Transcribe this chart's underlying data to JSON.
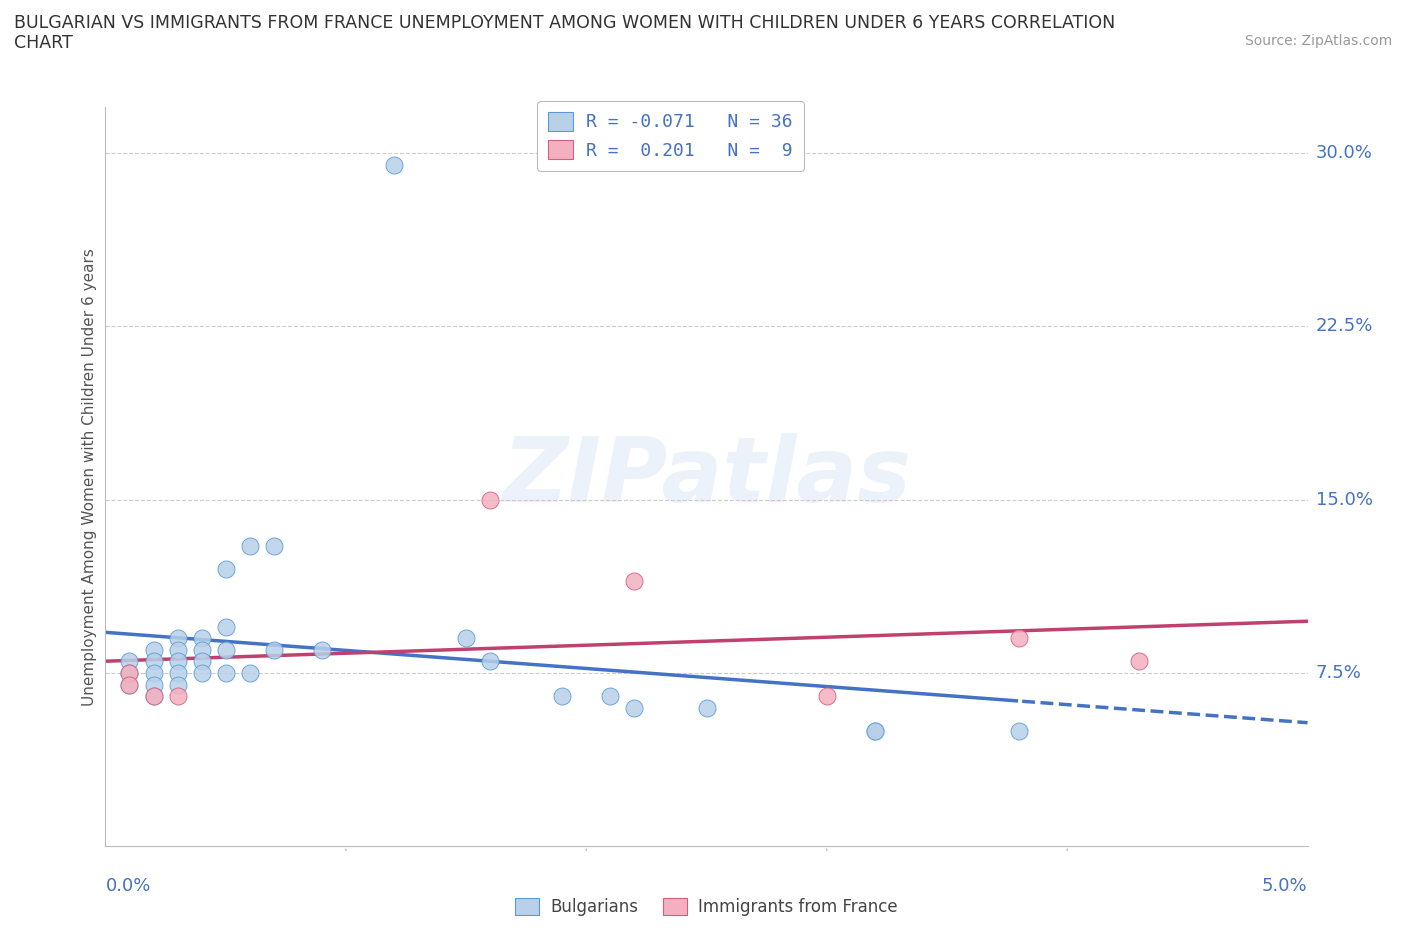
{
  "title_line1": "BULGARIAN VS IMMIGRANTS FROM FRANCE UNEMPLOYMENT AMONG WOMEN WITH CHILDREN UNDER 6 YEARS CORRELATION",
  "title_line2": "CHART",
  "source": "Source: ZipAtlas.com",
  "ylabel": "Unemployment Among Women with Children Under 6 years",
  "watermark": "ZIPatlas",
  "legend_bulgarian": "Bulgarians",
  "legend_france": "Immigrants from France",
  "R_bulgarian": -0.071,
  "N_bulgarian": 36,
  "R_france": 0.201,
  "N_france": 9,
  "color_bulgarian_fill": "#b8d0e8",
  "color_bulgarian_edge": "#5b9bd5",
  "color_france_fill": "#f4b0c0",
  "color_france_edge": "#d06080",
  "color_text_blue": "#4472c4",
  "color_trend_blue": "#4472c4",
  "color_trend_pink": "#c04070",
  "ytick_labels": [
    "7.5%",
    "15.0%",
    "22.5%",
    "30.0%"
  ],
  "ytick_values": [
    0.075,
    0.15,
    0.225,
    0.3
  ],
  "xlim": [
    0.0,
    0.05
  ],
  "ylim": [
    0.0,
    0.32
  ],
  "bulgarian_x": [
    0.001,
    0.001,
    0.001,
    0.002,
    0.002,
    0.002,
    0.002,
    0.002,
    0.003,
    0.003,
    0.003,
    0.003,
    0.003,
    0.004,
    0.004,
    0.004,
    0.004,
    0.005,
    0.005,
    0.005,
    0.005,
    0.006,
    0.006,
    0.007,
    0.007,
    0.009,
    0.012,
    0.015,
    0.016,
    0.019,
    0.021,
    0.022,
    0.025,
    0.032,
    0.032,
    0.038
  ],
  "bulgarian_y": [
    0.08,
    0.075,
    0.07,
    0.085,
    0.08,
    0.075,
    0.07,
    0.065,
    0.09,
    0.085,
    0.08,
    0.075,
    0.07,
    0.09,
    0.085,
    0.08,
    0.075,
    0.12,
    0.095,
    0.085,
    0.075,
    0.13,
    0.075,
    0.13,
    0.085,
    0.085,
    0.295,
    0.09,
    0.08,
    0.065,
    0.065,
    0.06,
    0.06,
    0.05,
    0.05,
    0.05
  ],
  "france_x": [
    0.001,
    0.001,
    0.002,
    0.003,
    0.016,
    0.022,
    0.03,
    0.038,
    0.043
  ],
  "france_y": [
    0.075,
    0.07,
    0.065,
    0.065,
    0.15,
    0.115,
    0.065,
    0.09,
    0.08
  ]
}
